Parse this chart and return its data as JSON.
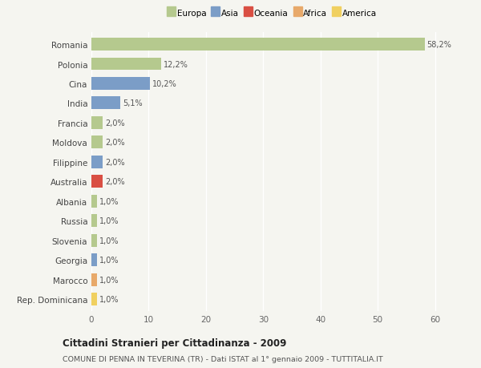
{
  "countries": [
    "Romania",
    "Polonia",
    "Cina",
    "India",
    "Francia",
    "Moldova",
    "Filippine",
    "Australia",
    "Albania",
    "Russia",
    "Slovenia",
    "Georgia",
    "Marocco",
    "Rep. Dominicana"
  ],
  "values": [
    58.2,
    12.2,
    10.2,
    5.1,
    2.0,
    2.0,
    2.0,
    2.0,
    1.0,
    1.0,
    1.0,
    1.0,
    1.0,
    1.0
  ],
  "labels": [
    "58,2%",
    "12,2%",
    "10,2%",
    "5,1%",
    "2,0%",
    "2,0%",
    "2,0%",
    "2,0%",
    "1,0%",
    "1,0%",
    "1,0%",
    "1,0%",
    "1,0%",
    "1,0%"
  ],
  "colors": [
    "#b5c98e",
    "#b5c98e",
    "#7b9dc7",
    "#7b9dc7",
    "#b5c98e",
    "#b5c98e",
    "#7b9dc7",
    "#d94f43",
    "#b5c98e",
    "#b5c98e",
    "#b5c98e",
    "#7b9dc7",
    "#e8a96a",
    "#f0d060"
  ],
  "legend": [
    {
      "label": "Europa",
      "color": "#b5c98e"
    },
    {
      "label": "Asia",
      "color": "#7b9dc7"
    },
    {
      "label": "Oceania",
      "color": "#d94f43"
    },
    {
      "label": "Africa",
      "color": "#e8a96a"
    },
    {
      "label": "America",
      "color": "#f0d060"
    }
  ],
  "title": "Cittadini Stranieri per Cittadinanza - 2009",
  "subtitle": "COMUNE DI PENNA IN TEVERINA (TR) - Dati ISTAT al 1° gennaio 2009 - TUTTITALIA.IT",
  "xlim": [
    0,
    63
  ],
  "xticks": [
    0,
    10,
    20,
    30,
    40,
    50,
    60
  ],
  "background_color": "#f5f5f0",
  "grid_color": "#ffffff"
}
